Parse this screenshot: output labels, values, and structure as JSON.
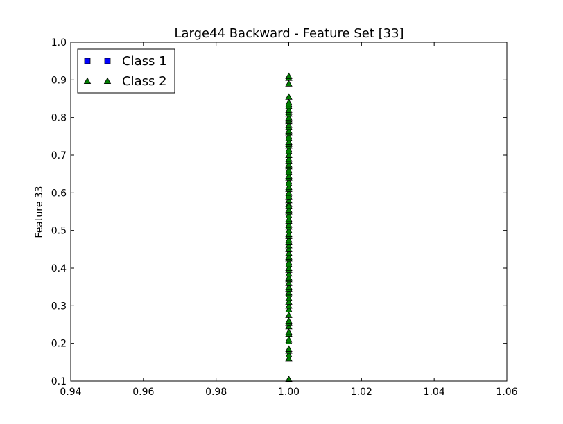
{
  "chart_data": {
    "type": "scatter",
    "title": "Large44 Backward - Feature Set [33]",
    "xlabel": "",
    "ylabel": "Feature 33",
    "xlim": [
      0.94,
      1.06
    ],
    "ylim": [
      0.1,
      1.0
    ],
    "xticks": [
      "0.94",
      "0.96",
      "0.98",
      "1.00",
      "1.02",
      "1.04",
      "1.06"
    ],
    "xtick_values": [
      0.94,
      0.96,
      0.98,
      1.0,
      1.02,
      1.04,
      1.06
    ],
    "yticks": [
      "0.1",
      "0.2",
      "0.3",
      "0.4",
      "0.5",
      "0.6",
      "0.7",
      "0.8",
      "0.9",
      "1.0"
    ],
    "ytick_values": [
      0.1,
      0.2,
      0.3,
      0.4,
      0.5,
      0.6,
      0.7,
      0.8,
      0.9,
      1.0
    ],
    "grid": false,
    "legend_position": "top-left",
    "series": [
      {
        "name": "Class 1",
        "marker": "square",
        "color": "#0000ff",
        "x": [],
        "y": []
      },
      {
        "name": "Class 2",
        "marker": "triangle",
        "color": "#008000",
        "x": [
          1.0,
          1.0,
          1.0,
          1.0,
          1.0,
          1.0,
          1.0,
          1.0,
          1.0,
          1.0,
          1.0,
          1.0,
          1.0,
          1.0,
          1.0,
          1.0,
          1.0,
          1.0,
          1.0,
          1.0,
          1.0,
          1.0,
          1.0,
          1.0,
          1.0,
          1.0,
          1.0,
          1.0,
          1.0,
          1.0,
          1.0,
          1.0,
          1.0,
          1.0,
          1.0,
          1.0,
          1.0,
          1.0,
          1.0,
          1.0,
          1.0,
          1.0,
          1.0,
          1.0,
          1.0,
          1.0,
          1.0,
          1.0,
          1.0,
          1.0,
          1.0,
          1.0,
          1.0,
          1.0,
          1.0,
          1.0,
          1.0,
          1.0,
          1.0,
          1.0,
          1.0,
          1.0,
          1.0,
          1.0,
          1.0,
          1.0,
          1.0,
          1.0,
          1.0,
          1.0,
          1.0,
          1.0,
          1.0,
          1.0,
          1.0,
          1.0,
          1.0,
          1.0,
          1.0,
          1.0,
          1.0,
          1.0,
          1.0,
          1.0,
          1.0,
          1.0,
          1.0,
          1.0,
          1.0,
          1.0
        ],
        "y": [
          0.105,
          0.16,
          0.17,
          0.18,
          0.185,
          0.205,
          0.21,
          0.225,
          0.23,
          0.245,
          0.255,
          0.26,
          0.275,
          0.29,
          0.3,
          0.31,
          0.32,
          0.33,
          0.335,
          0.345,
          0.35,
          0.36,
          0.37,
          0.375,
          0.385,
          0.395,
          0.4,
          0.41,
          0.415,
          0.425,
          0.43,
          0.44,
          0.45,
          0.46,
          0.47,
          0.475,
          0.485,
          0.49,
          0.5,
          0.51,
          0.515,
          0.525,
          0.53,
          0.54,
          0.55,
          0.555,
          0.565,
          0.57,
          0.58,
          0.59,
          0.595,
          0.6,
          0.61,
          0.615,
          0.625,
          0.63,
          0.64,
          0.645,
          0.655,
          0.66,
          0.67,
          0.675,
          0.685,
          0.69,
          0.7,
          0.71,
          0.715,
          0.725,
          0.73,
          0.735,
          0.745,
          0.75,
          0.76,
          0.765,
          0.775,
          0.78,
          0.79,
          0.795,
          0.8,
          0.81,
          0.815,
          0.82,
          0.83,
          0.835,
          0.84,
          0.855,
          0.89,
          0.905,
          0.91,
          0.565
        ]
      }
    ]
  }
}
